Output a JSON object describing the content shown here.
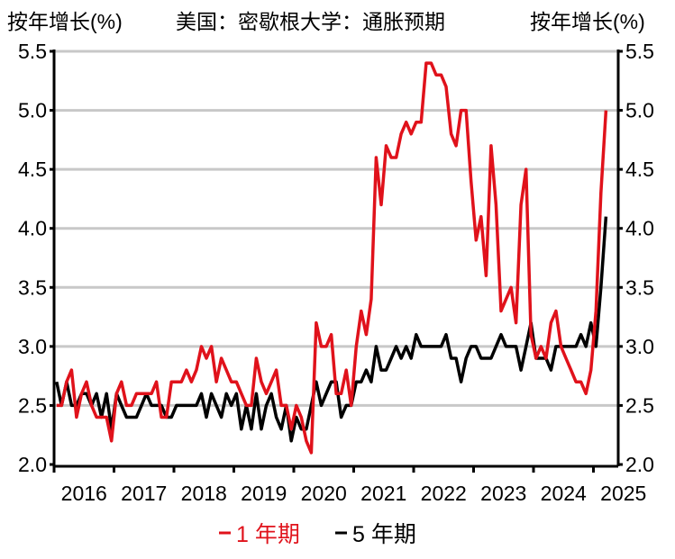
{
  "chart_data": {
    "type": "line",
    "title": "美国：密歇根大学：通胀预期",
    "ylabel_left": "按年增长(%)",
    "ylabel_right": "按年增长(%)",
    "ylim": [
      2.0,
      5.5
    ],
    "yticks": [
      "2.0",
      "2.5",
      "3.0",
      "3.5",
      "4.0",
      "4.5",
      "5.0",
      "5.5"
    ],
    "xticks": [
      "2016",
      "2017",
      "2018",
      "2019",
      "2020",
      "2021",
      "2022",
      "2023",
      "2024",
      "2025"
    ],
    "x_start": "2016-01",
    "x_frequency": "monthly",
    "grid": true,
    "legend_position": "bottom",
    "series": [
      {
        "name": "1 年期",
        "color": "#e0121b",
        "values": [
          2.5,
          2.5,
          2.7,
          2.8,
          2.4,
          2.6,
          2.7,
          2.5,
          2.4,
          2.4,
          2.4,
          2.2,
          2.6,
          2.7,
          2.5,
          2.5,
          2.6,
          2.6,
          2.6,
          2.6,
          2.7,
          2.4,
          2.4,
          2.7,
          2.7,
          2.7,
          2.8,
          2.7,
          2.8,
          3.0,
          2.9,
          3.0,
          2.7,
          2.9,
          2.8,
          2.7,
          2.7,
          2.6,
          2.5,
          2.5,
          2.9,
          2.7,
          2.6,
          2.7,
          2.8,
          2.5,
          2.5,
          2.3,
          2.5,
          2.4,
          2.2,
          2.1,
          3.2,
          3.0,
          3.0,
          3.1,
          2.6,
          2.6,
          2.8,
          2.5,
          3.0,
          3.3,
          3.1,
          3.4,
          4.6,
          4.2,
          4.7,
          4.6,
          4.6,
          4.8,
          4.9,
          4.8,
          4.9,
          4.9,
          5.4,
          5.4,
          5.3,
          5.3,
          5.2,
          4.8,
          4.7,
          5.0,
          5.0,
          4.4,
          3.9,
          4.1,
          3.6,
          4.7,
          4.2,
          3.3,
          3.4,
          3.5,
          3.2,
          4.2,
          4.5,
          3.1,
          2.9,
          3.0,
          2.9,
          3.2,
          3.3,
          3.0,
          2.9,
          2.8,
          2.7,
          2.7,
          2.6,
          2.8,
          3.3,
          4.3,
          5.0
        ]
      },
      {
        "name": "5 年期",
        "color": "#000000",
        "values": [
          2.7,
          2.5,
          2.7,
          2.5,
          2.5,
          2.6,
          2.6,
          2.5,
          2.6,
          2.4,
          2.6,
          2.3,
          2.6,
          2.5,
          2.4,
          2.4,
          2.4,
          2.5,
          2.6,
          2.5,
          2.5,
          2.5,
          2.4,
          2.4,
          2.5,
          2.5,
          2.5,
          2.5,
          2.5,
          2.6,
          2.4,
          2.6,
          2.5,
          2.4,
          2.6,
          2.5,
          2.6,
          2.3,
          2.5,
          2.3,
          2.6,
          2.3,
          2.5,
          2.6,
          2.4,
          2.3,
          2.5,
          2.2,
          2.4,
          2.3,
          2.3,
          2.5,
          2.7,
          2.5,
          2.6,
          2.7,
          2.7,
          2.4,
          2.5,
          2.5,
          2.7,
          2.7,
          2.8,
          2.7,
          3.0,
          2.8,
          2.8,
          2.9,
          3.0,
          2.9,
          3.0,
          2.9,
          3.1,
          3.0,
          3.0,
          3.0,
          3.0,
          3.0,
          3.1,
          2.9,
          2.9,
          2.7,
          2.9,
          3.0,
          3.0,
          2.9,
          2.9,
          2.9,
          3.0,
          3.1,
          3.0,
          3.0,
          3.0,
          2.8,
          3.0,
          3.2,
          2.9,
          2.9,
          2.9,
          2.8,
          3.0,
          3.0,
          3.0,
          3.0,
          3.0,
          3.1,
          3.0,
          3.2,
          3.0,
          3.5,
          4.1
        ]
      }
    ]
  }
}
